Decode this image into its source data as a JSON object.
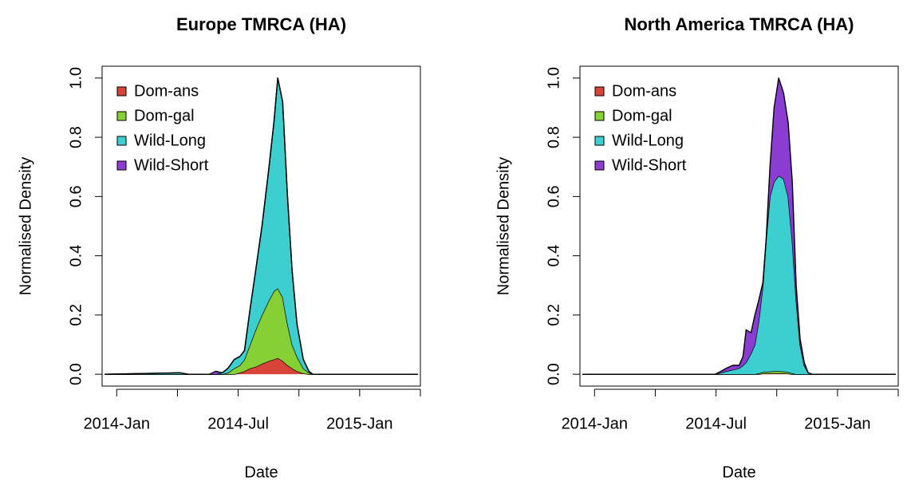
{
  "chart_data": [
    {
      "type": "area",
      "stacked": true,
      "title": "Europe TMRCA (HA)",
      "x_label": "Date",
      "y_label": "Normalised Density",
      "legend": "topleft",
      "x": [
        2013.95,
        2014.261,
        2014.294,
        2014.382,
        2014.408,
        2014.435,
        2014.458,
        2014.484,
        2014.507,
        2014.526,
        2014.549,
        2014.572,
        2014.598,
        2014.627,
        2014.647,
        2014.663,
        2014.683,
        2014.703,
        2014.722,
        2014.742,
        2014.768,
        2014.791,
        2014.807,
        2015.24
      ],
      "series": [
        {
          "name": "Dom-ans",
          "color": "#d9443a",
          "values": [
            0,
            0,
            0,
            0,
            0,
            0,
            0,
            0,
            0.005,
            0.01,
            0.02,
            0.025,
            0.035,
            0.045,
            0.05,
            0.055,
            0.045,
            0.03,
            0.02,
            0.01,
            0.003,
            0,
            0,
            0
          ]
        },
        {
          "name": "Dom-gal",
          "color": "#86cf34",
          "values": [
            0,
            0,
            0,
            0,
            0,
            0,
            0.005,
            0.02,
            0.025,
            0.04,
            0.08,
            0.125,
            0.165,
            0.205,
            0.23,
            0.235,
            0.215,
            0.14,
            0.08,
            0.05,
            0.017,
            0.005,
            0,
            0
          ]
        },
        {
          "name": "Wild-Long",
          "color": "#3dcfd0",
          "values": [
            0,
            0.005,
            0,
            0,
            0,
            0.005,
            0.015,
            0.03,
            0.03,
            0.03,
            0.12,
            0.2,
            0.3,
            0.45,
            0.57,
            0.71,
            0.66,
            0.43,
            0.25,
            0.11,
            0.03,
            0.005,
            0,
            0
          ]
        },
        {
          "name": "Wild-Short",
          "color": "#8b3cd1",
          "values": [
            0,
            0,
            0,
            0,
            0.01,
            0,
            0,
            0,
            0,
            0,
            0,
            0,
            0,
            0,
            0,
            0,
            0,
            0,
            0,
            0,
            0,
            0,
            0,
            0
          ]
        }
      ],
      "xlim": [
        2013.94,
        2015.25
      ],
      "ylim": [
        -0.04,
        1.04
      ],
      "xticks": [
        {
          "value": 2014,
          "label": "2014-Jan"
        },
        {
          "value": 2014.25,
          "label": null
        },
        {
          "value": 2014.5,
          "label": "2014-Jul"
        },
        {
          "value": 2014.75,
          "label": null
        },
        {
          "value": 2015,
          "label": "2015-Jan"
        },
        {
          "value": 2015.25,
          "label": null
        }
      ],
      "yticks": [
        {
          "value": 0,
          "label": "0.0"
        },
        0.2,
        0.4,
        0.6,
        0.8,
        {
          "value": 1,
          "label": "1.0"
        }
      ]
    },
    {
      "type": "area",
      "stacked": true,
      "title": "North America TMRCA (HA)",
      "x_label": "Date",
      "y_label": "Normalised Density",
      "legend": "topleft",
      "x": [
        2013.95,
        2014.497,
        2014.52,
        2014.542,
        2014.569,
        2014.595,
        2014.611,
        2014.624,
        2014.644,
        2014.66,
        2014.676,
        2014.693,
        2014.706,
        2014.722,
        2014.739,
        2014.758,
        2014.778,
        2014.797,
        2014.814,
        2014.83,
        2014.846,
        2014.863,
        2014.879,
        2014.895,
        2015.24
      ],
      "series": [
        {
          "name": "Dom-ans",
          "color": "#d9443a",
          "values": [
            0,
            0,
            0,
            0,
            0,
            0,
            0,
            0,
            0,
            0,
            0,
            0.002,
            0.003,
            0.003,
            0.003,
            0.003,
            0.003,
            0.002,
            0,
            0,
            0,
            0,
            0,
            0,
            0
          ]
        },
        {
          "name": "Dom-gal",
          "color": "#86cf34",
          "values": [
            0,
            0,
            0,
            0,
            0,
            0,
            0,
            0,
            0,
            0,
            0.003,
            0.005,
            0.005,
            0.006,
            0.007,
            0.007,
            0.006,
            0.005,
            0.003,
            0,
            0,
            0,
            0,
            0,
            0
          ]
        },
        {
          "name": "Wild-Long",
          "color": "#3dcfd0",
          "values": [
            0,
            0,
            0.005,
            0.01,
            0.015,
            0.02,
            0.03,
            0.04,
            0.07,
            0.1,
            0.177,
            0.293,
            0.442,
            0.591,
            0.64,
            0.66,
            0.651,
            0.593,
            0.447,
            0.25,
            0.1,
            0.03,
            0.005,
            0,
            0
          ]
        },
        {
          "name": "Wild-Short",
          "color": "#8b3cd1",
          "values": [
            0,
            0,
            0.005,
            0.01,
            0.015,
            0.01,
            0.03,
            0.11,
            0.07,
            0.1,
            0.07,
            0.01,
            0,
            0.1,
            0.25,
            0.33,
            0.29,
            0.25,
            0.2,
            0.05,
            0.02,
            0.01,
            0,
            0,
            0
          ]
        }
      ],
      "xlim": [
        2013.94,
        2015.25
      ],
      "ylim": [
        -0.04,
        1.04
      ],
      "xticks": [
        {
          "value": 2014,
          "label": "2014-Jan"
        },
        {
          "value": 2014.25,
          "label": null
        },
        {
          "value": 2014.5,
          "label": "2014-Jul"
        },
        {
          "value": 2014.75,
          "label": null
        },
        {
          "value": 2015,
          "label": "2015-Jan"
        },
        {
          "value": 2015.25,
          "label": null
        }
      ],
      "yticks": [
        {
          "value": 0,
          "label": "0.0"
        },
        0.2,
        0.4,
        0.6,
        0.8,
        {
          "value": 1,
          "label": "1.0"
        }
      ]
    }
  ]
}
